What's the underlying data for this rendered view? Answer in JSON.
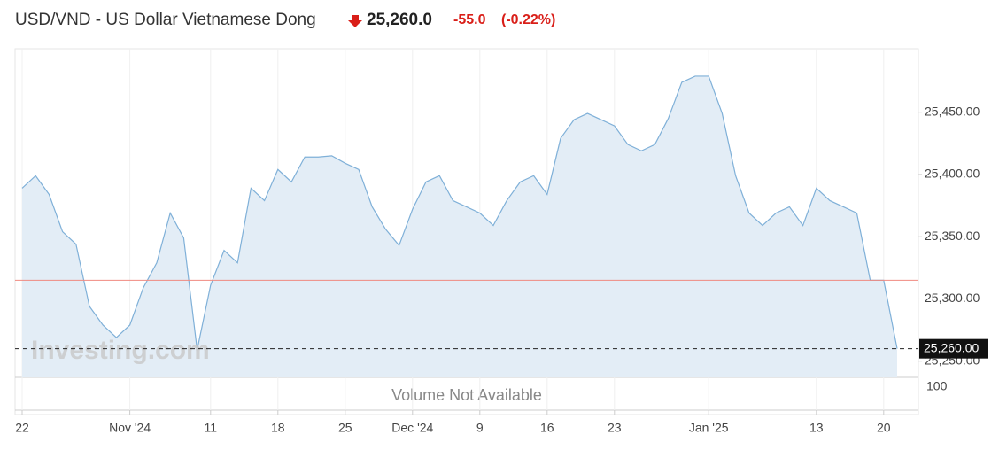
{
  "chart_data": {
    "type": "area",
    "title": "USD/VND - US Dollar Vietnamese Dong",
    "price": "25,260.0",
    "change": "-55.0",
    "change_percent": "(-0.22%)",
    "watermark": "Investing.com",
    "volume_text": "Volume Not Available",
    "volume_tick": "100",
    "color": "#7fb0d8",
    "fill": "#e3edf6",
    "reference_line": 25315,
    "reference_color": "#f08a80",
    "current_price": {
      "value": 25260,
      "label": "25,260.00"
    },
    "categories": [
      "22",
      null,
      null,
      null,
      null,
      null,
      null,
      null,
      "Nov '24",
      null,
      null,
      null,
      null,
      null,
      "11",
      null,
      null,
      null,
      null,
      "18",
      null,
      null,
      null,
      null,
      "25",
      null,
      null,
      null,
      null,
      "Dec '24",
      null,
      null,
      null,
      null,
      "9",
      null,
      null,
      null,
      null,
      "16",
      null,
      null,
      null,
      null,
      "23",
      null,
      null,
      null,
      null,
      null,
      null,
      "Jan '25",
      null,
      null,
      null,
      null,
      null,
      null,
      null,
      "13",
      null,
      null,
      null,
      null,
      "20",
      null
    ],
    "values": [
      25389,
      25399,
      25384,
      25354,
      25344,
      25294,
      25279,
      25269,
      25279,
      25309,
      25329,
      25369,
      25349,
      25259,
      25311,
      25339,
      25329,
      25389,
      25379,
      25404,
      25394,
      25414,
      25414,
      25415,
      25409,
      25404,
      25374,
      25356,
      25343,
      25372,
      25394,
      25399,
      25379,
      25374,
      25369,
      25359,
      25379,
      25394,
      25399,
      25384,
      25429,
      25444,
      25449,
      25444,
      25439,
      25424,
      25419,
      25424,
      25445,
      25474,
      25479,
      25479,
      25449,
      25399,
      25369,
      25359,
      25369,
      25374,
      25359,
      25389,
      25379,
      25374,
      25369,
      25315,
      25315,
      25260
    ],
    "ylim": [
      25237,
      25501
    ],
    "yticks": [
      {
        "value": 25250,
        "label": "25,250.00"
      },
      {
        "value": 25300,
        "label": "25,300.00"
      },
      {
        "value": 25350,
        "label": "25,350.00"
      },
      {
        "value": 25400,
        "label": "25,400.00"
      },
      {
        "value": 25450,
        "label": "25,450.00"
      }
    ]
  }
}
